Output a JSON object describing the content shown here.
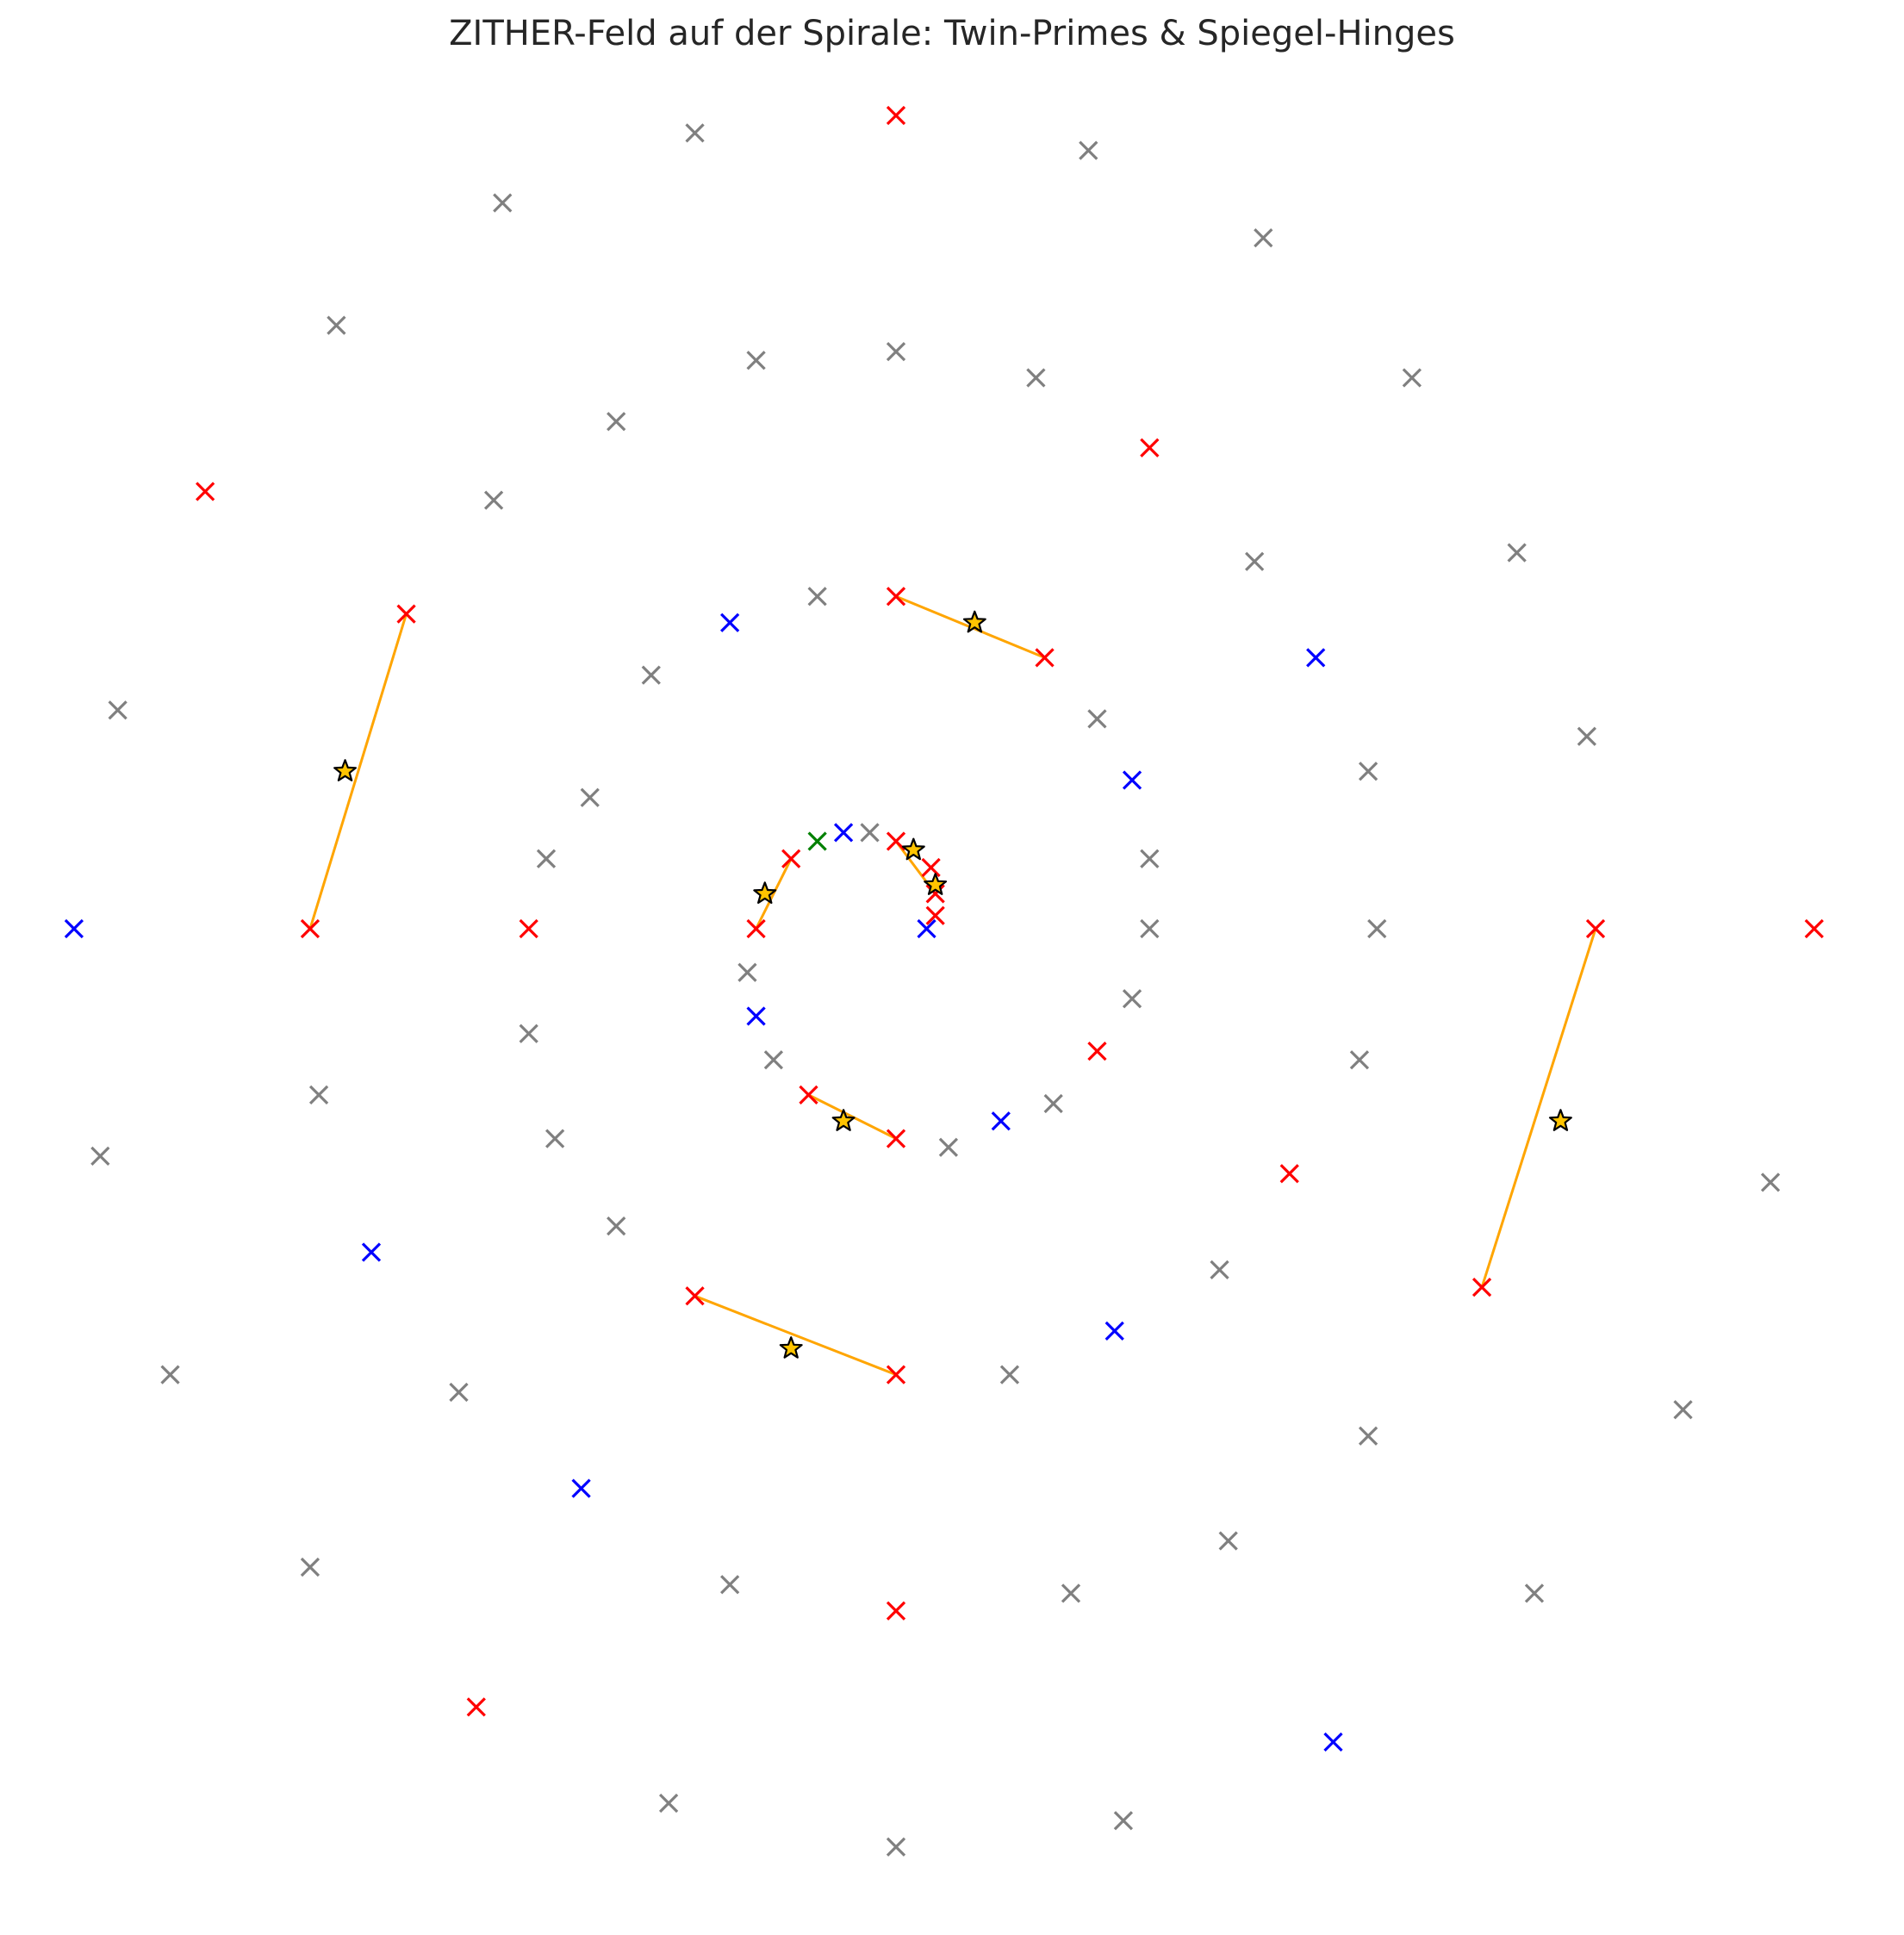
{
  "chart_data": {
    "type": "scatter",
    "title": "ZITHER-Feld auf der Spirale: Twin-Primes & Spiegel-Hinges",
    "xlabel": "",
    "ylabel": "",
    "grid": false,
    "axes_visible": false,
    "xlim": [
      -11.2,
      11.2
    ],
    "ylim": [
      -11.2,
      11.2
    ],
    "marker_colors": {
      "gray": "#808080",
      "red": "#ff0000",
      "blue": "#0000ff",
      "green": "#008000",
      "hinge_line": "#ffa500",
      "star_fill": "#ffc400",
      "star_edge": "#000000"
    },
    "series": [
      {
        "marker": "x",
        "color": "gray",
        "points": [
          [
            -2.3,
            9.1
          ],
          [
            2.2,
            8.9
          ],
          [
            -4.5,
            8.3
          ],
          [
            4.2,
            7.9
          ],
          [
            -6.4,
            6.9
          ],
          [
            -1.6,
            6.5
          ],
          [
            0.0,
            6.6
          ],
          [
            1.6,
            6.3
          ],
          [
            5.9,
            6.3
          ],
          [
            -3.2,
            5.8
          ],
          [
            -4.6,
            4.9
          ],
          [
            4.1,
            4.2
          ],
          [
            7.1,
            4.3
          ],
          [
            -0.9,
            3.8
          ],
          [
            -2.8,
            2.9
          ],
          [
            2.3,
            2.4
          ],
          [
            -8.9,
            2.5
          ],
          [
            7.9,
            2.2
          ],
          [
            -3.5,
            1.5
          ],
          [
            5.4,
            1.8
          ],
          [
            -4.0,
            0.8
          ],
          [
            -0.3,
            1.1
          ],
          [
            2.9,
            0.8
          ],
          [
            2.9,
            0.0
          ],
          [
            5.5,
            0.0
          ],
          [
            -1.7,
            -0.5
          ],
          [
            2.7,
            -0.8
          ],
          [
            -4.2,
            -1.2
          ],
          [
            5.3,
            -1.5
          ],
          [
            -1.4,
            -1.5
          ],
          [
            -6.6,
            -1.9
          ],
          [
            1.8,
            -2.0
          ],
          [
            -9.1,
            -2.6
          ],
          [
            -3.9,
            -2.4
          ],
          [
            0.6,
            -2.5
          ],
          [
            10.0,
            -2.9
          ],
          [
            -3.2,
            -3.4
          ],
          [
            3.7,
            -3.9
          ],
          [
            -8.3,
            -5.1
          ],
          [
            -5.0,
            -5.3
          ],
          [
            1.3,
            -5.1
          ],
          [
            5.4,
            -5.8
          ],
          [
            9.0,
            -5.5
          ],
          [
            -6.7,
            -7.3
          ],
          [
            -1.9,
            -7.5
          ],
          [
            3.8,
            -7.0
          ],
          [
            2.0,
            -7.6
          ],
          [
            7.3,
            -7.6
          ],
          [
            -2.6,
            -10.0
          ],
          [
            2.6,
            -10.2
          ],
          [
            0.0,
            -10.5
          ]
        ]
      },
      {
        "marker": "x",
        "color": "red",
        "points": [
          [
            0.0,
            9.3
          ],
          [
            2.9,
            5.5
          ],
          [
            -7.9,
            5.0
          ],
          [
            -5.6,
            3.6
          ],
          [
            0.0,
            3.8
          ],
          [
            1.7,
            3.1
          ],
          [
            0.0,
            1.0
          ],
          [
            -1.2,
            0.8
          ],
          [
            0.4,
            0.7
          ],
          [
            0.45,
            0.4
          ],
          [
            0.45,
            0.15
          ],
          [
            -1.6,
            0.0
          ],
          [
            -6.7,
            0.0
          ],
          [
            -4.2,
            0.0
          ],
          [
            8.0,
            0.0
          ],
          [
            10.5,
            0.0
          ],
          [
            2.3,
            -1.4
          ],
          [
            -1.0,
            -1.9
          ],
          [
            0.0,
            -2.4
          ],
          [
            4.5,
            -2.8
          ],
          [
            6.7,
            -4.1
          ],
          [
            -2.3,
            -4.2
          ],
          [
            0.0,
            -5.1
          ],
          [
            0.0,
            -7.8
          ],
          [
            -4.8,
            -8.9
          ]
        ]
      },
      {
        "marker": "x",
        "color": "blue",
        "points": [
          [
            -1.9,
            3.5
          ],
          [
            4.8,
            3.1
          ],
          [
            2.7,
            1.7
          ],
          [
            -0.6,
            1.1
          ],
          [
            0.35,
            0.0
          ],
          [
            -9.4,
            0.0
          ],
          [
            -1.6,
            -1.0
          ],
          [
            1.2,
            -2.2
          ],
          [
            -6.0,
            -3.7
          ],
          [
            2.5,
            -4.6
          ],
          [
            -3.6,
            -6.4
          ],
          [
            5.0,
            -9.3
          ]
        ]
      },
      {
        "marker": "x",
        "color": "green",
        "points": [
          [
            -0.9,
            1.0
          ]
        ]
      },
      {
        "marker": "star",
        "color": "star_fill",
        "points": [
          [
            0.9,
            3.5
          ],
          [
            -6.3,
            1.8
          ],
          [
            0.2,
            0.9
          ],
          [
            0.45,
            0.5
          ],
          [
            -1.5,
            0.4
          ],
          [
            7.6,
            -2.2
          ],
          [
            -0.6,
            -2.2
          ],
          [
            -1.2,
            -4.8
          ]
        ]
      }
    ],
    "hinge_segments": [
      [
        [
          0.0,
          3.8
        ],
        [
          1.7,
          3.1
        ]
      ],
      [
        [
          -5.6,
          3.6
        ],
        [
          -6.7,
          0.0
        ]
      ],
      [
        [
          0.0,
          1.0
        ],
        [
          0.45,
          0.4
        ]
      ],
      [
        [
          -1.2,
          0.8
        ],
        [
          -1.6,
          0.0
        ]
      ],
      [
        [
          8.0,
          0.0
        ],
        [
          6.7,
          -4.1
        ]
      ],
      [
        [
          -1.0,
          -1.9
        ],
        [
          0.0,
          -2.4
        ]
      ],
      [
        [
          -2.3,
          -4.2
        ],
        [
          0.0,
          -5.1
        ]
      ]
    ]
  }
}
